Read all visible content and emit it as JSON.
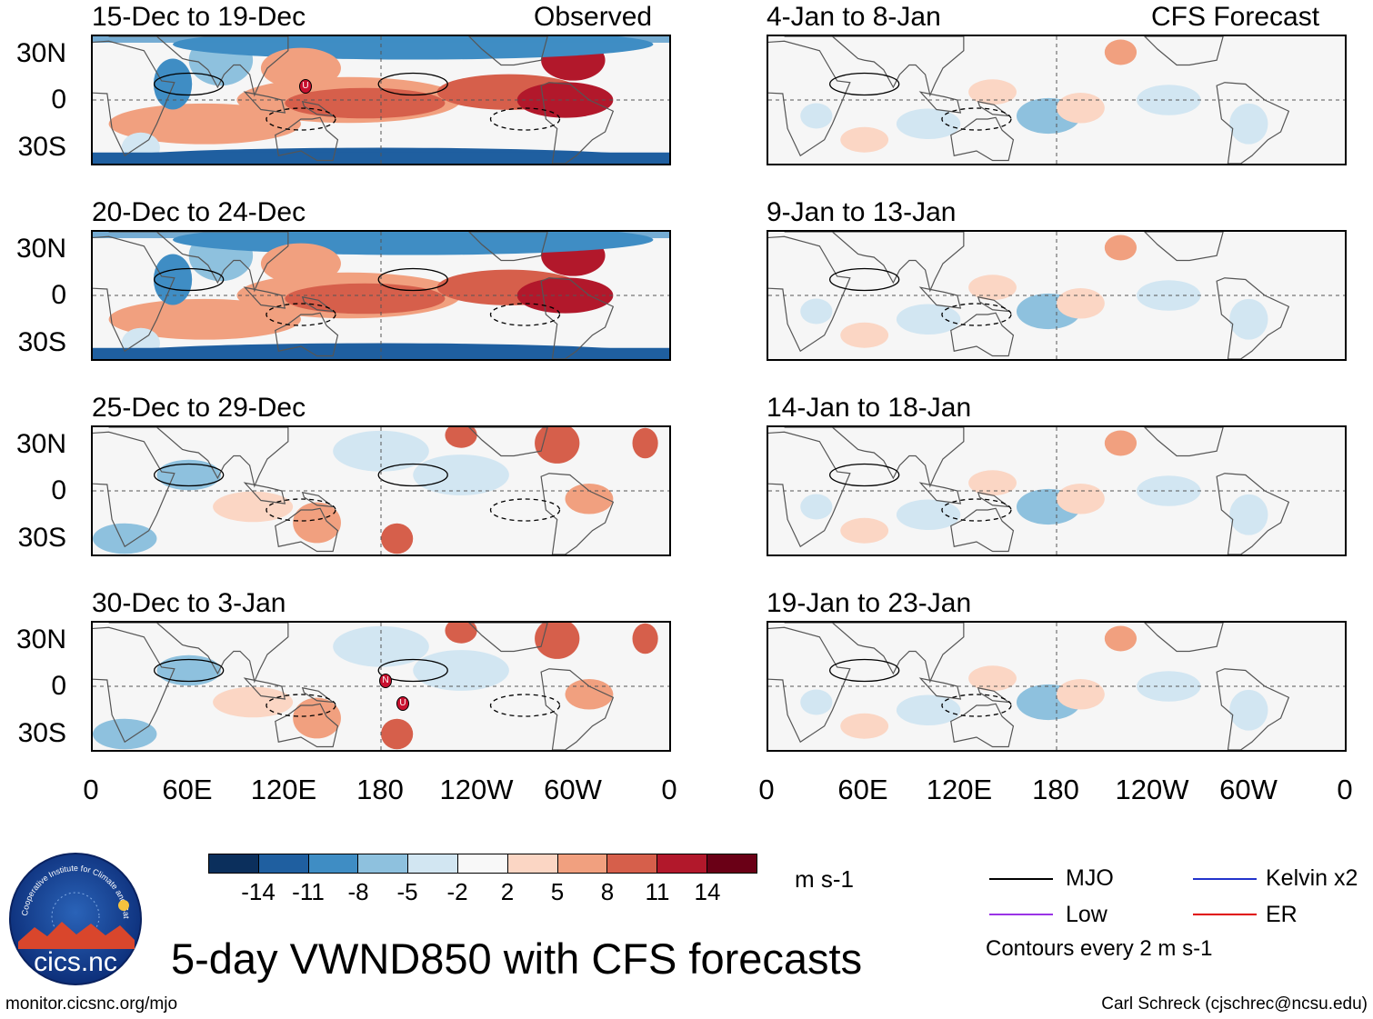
{
  "title": "5-day VWND850 with CFS forecasts",
  "header": {
    "observed": "Observed",
    "forecast": "CFS Forecast"
  },
  "panels": {
    "left": [
      "15-Dec to 19-Dec",
      "20-Dec to 24-Dec",
      "25-Dec to 29-Dec",
      "30-Dec to 3-Jan"
    ],
    "right": [
      "4-Jan to 8-Jan",
      "9-Jan to 13-Jan",
      "14-Jan to 18-Jan",
      "19-Jan to 23-Jan"
    ]
  },
  "axes": {
    "lat_labels": [
      "30N",
      "0",
      "30S"
    ],
    "lon_labels": [
      "0",
      "60E",
      "120E",
      "180",
      "120W",
      "60W",
      "0"
    ]
  },
  "colorbar": {
    "labels": [
      "-14",
      "-11",
      "-8",
      "-5",
      "-2",
      "2",
      "5",
      "8",
      "11",
      "14"
    ],
    "units": "m s-1",
    "colors": [
      "#0b2f5c",
      "#1f5fa0",
      "#3f8dc4",
      "#8ec1de",
      "#d2e6f2",
      "#f8f8f8",
      "#fbd6c4",
      "#f1a07f",
      "#d65f4b",
      "#b2182b",
      "#6a0016"
    ]
  },
  "legend": {
    "items": [
      {
        "label": "MJO",
        "color": "#000000"
      },
      {
        "label": "Kelvin x2",
        "color": "#2233cc"
      },
      {
        "label": "Low",
        "color": "#9a33e6"
      },
      {
        "label": "ER",
        "color": "#e00000"
      }
    ],
    "note": "Contours every 2 m s-1"
  },
  "logo": {
    "text": "cics.nc",
    "arc_text": "Cooperative Institute for Climate and Satellites"
  },
  "footer": {
    "url": "monitor.cicsnc.org/mjo",
    "credit": "Carl Schreck (cjschrec@ncsu.edu)"
  },
  "storm_markers": [
    "U",
    "N",
    "U"
  ]
}
